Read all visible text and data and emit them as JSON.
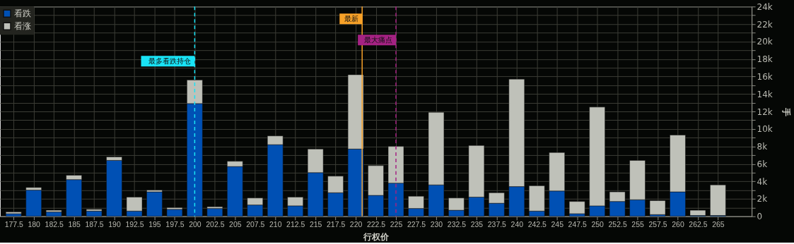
{
  "chart_data": {
    "type": "bar",
    "stacked": true,
    "xlabel": "行权价",
    "ylabel": "手",
    "x": [
      177.5,
      180,
      182.5,
      185,
      187.5,
      190,
      192.5,
      195,
      197.5,
      200,
      202.5,
      205,
      207.5,
      210,
      212.5,
      215,
      217.5,
      220,
      222.5,
      225,
      227.5,
      230,
      232.5,
      235,
      237.5,
      240,
      242.5,
      245,
      247.5,
      250,
      252.5,
      255,
      257.5,
      260,
      262.5,
      265
    ],
    "series": [
      {
        "name": "看跌",
        "color": "#0050b4",
        "values": [
          300,
          3000,
          500,
          4200,
          600,
          6400,
          600,
          2800,
          800,
          12900,
          900,
          5700,
          1300,
          8200,
          1200,
          5000,
          2700,
          7700,
          2400,
          3800,
          900,
          3600,
          700,
          2200,
          1500,
          3400,
          600,
          2900,
          300,
          1200,
          1700,
          1900,
          200,
          2800,
          100,
          100
        ]
      },
      {
        "name": "看涨",
        "color": "#bfc1b9",
        "values": [
          200,
          300,
          200,
          500,
          200,
          400,
          1600,
          200,
          200,
          2700,
          200,
          600,
          800,
          1000,
          1000,
          2700,
          1900,
          8500,
          3400,
          4200,
          1400,
          8300,
          1400,
          5900,
          1200,
          12300,
          2900,
          4400,
          1400,
          11300,
          1100,
          4500,
          1600,
          6500,
          600,
          3500
        ]
      }
    ],
    "xlim": [
      176.25,
      268.75
    ],
    "xticks": [
      177.5,
      180,
      182.5,
      185,
      187.5,
      190,
      192.5,
      195,
      197.5,
      200,
      202.5,
      205,
      207.5,
      210,
      212.5,
      215,
      217.5,
      220,
      222.5,
      225,
      227.5,
      230,
      232.5,
      235,
      237.5,
      240,
      242.5,
      245,
      247.5,
      250,
      252.5,
      255,
      257.5,
      260,
      262.5,
      265
    ],
    "ylim": [
      0,
      24000
    ],
    "yticks": [
      0,
      {
        "value": 1000,
        "label": null
      },
      {
        "value": 2000,
        "label": "2k"
      },
      {
        "value": 3000,
        "label": null
      },
      {
        "value": 4000,
        "label": "4k"
      },
      {
        "value": 5000,
        "label": null
      },
      {
        "value": 6000,
        "label": "6k"
      },
      {
        "value": 7000,
        "label": null
      },
      {
        "value": 8000,
        "label": "8k"
      },
      {
        "value": 9000,
        "label": null
      },
      {
        "value": 10000,
        "label": "10k"
      },
      {
        "value": 11000,
        "label": null
      },
      {
        "value": 12000,
        "label": "12k"
      },
      {
        "value": 13000,
        "label": null
      },
      {
        "value": 14000,
        "label": "14k"
      },
      {
        "value": 15000,
        "label": null
      },
      {
        "value": 16000,
        "label": "16k"
      },
      {
        "value": 17000,
        "label": null
      },
      {
        "value": 18000,
        "label": "18k"
      },
      {
        "value": 19000,
        "label": null
      },
      {
        "value": 20000,
        "label": "20k"
      },
      {
        "value": 21000,
        "label": null
      },
      {
        "value": 22000,
        "label": "22k"
      },
      {
        "value": 23000,
        "label": null
      },
      {
        "value": 24000,
        "label": "24k"
      }
    ],
    "ref_lines": [
      {
        "axis": "x",
        "value": 200,
        "label": "最多看跌持仓",
        "color": "#19e3f5",
        "line_style": "dashed"
      },
      {
        "axis": "x",
        "value": 220.8,
        "label": "最新",
        "color": "#f7a128",
        "line_style": "solid"
      },
      {
        "axis": "x",
        "value": 225,
        "label": "最大痛点",
        "color": "#a52283",
        "line_style": "dashed"
      }
    ],
    "grid": true,
    "legend": "top left"
  }
}
